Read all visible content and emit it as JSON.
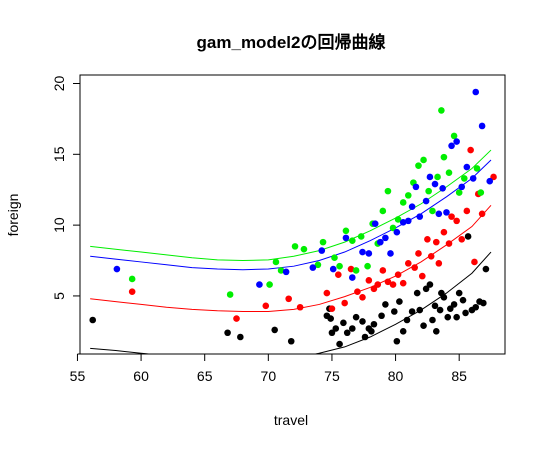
{
  "chart_data": {
    "type": "scatter",
    "title": "gam_model2の回帰曲線",
    "xlabel": "travel",
    "ylabel": "foreign",
    "xlim": [
      55.2,
      88.6
    ],
    "ylim": [
      0.9,
      20.6
    ],
    "xticks": [
      55,
      60,
      65,
      70,
      75,
      80,
      85
    ],
    "yticks": [
      5,
      10,
      15,
      20
    ],
    "grid": false,
    "legend": "none",
    "colors": {
      "black": "#000000",
      "red": "#ff0000",
      "green": "#00ee00",
      "blue": "#0000ff"
    },
    "series": [
      {
        "color": "black",
        "points": [
          [
            56.2,
            3.3
          ],
          [
            66.8,
            2.4
          ],
          [
            67.8,
            2.1
          ],
          [
            70.5,
            2.6
          ],
          [
            71.8,
            1.8
          ],
          [
            74.6,
            3.6
          ],
          [
            74.8,
            4.1
          ],
          [
            74.9,
            3.4
          ],
          [
            75.0,
            2.4
          ],
          [
            75.3,
            2.7
          ],
          [
            75.6,
            1.6
          ],
          [
            75.9,
            3.1
          ],
          [
            76.2,
            2.4
          ],
          [
            76.6,
            2.7
          ],
          [
            76.9,
            3.5
          ],
          [
            77.4,
            3.2
          ],
          [
            77.6,
            2.1
          ],
          [
            77.9,
            2.7
          ],
          [
            78.1,
            2.5
          ],
          [
            78.3,
            3.0
          ],
          [
            78.9,
            3.6
          ],
          [
            79.2,
            4.4
          ],
          [
            79.9,
            3.9
          ],
          [
            80.1,
            1.8
          ],
          [
            80.3,
            4.6
          ],
          [
            80.6,
            2.5
          ],
          [
            80.9,
            3.3
          ],
          [
            81.3,
            3.9
          ],
          [
            81.7,
            5.2
          ],
          [
            81.9,
            4.0
          ],
          [
            82.2,
            2.9
          ],
          [
            82.4,
            5.5
          ],
          [
            82.7,
            5.8
          ],
          [
            82.9,
            3.3
          ],
          [
            83.1,
            4.3
          ],
          [
            83.2,
            2.5
          ],
          [
            83.5,
            4.0
          ],
          [
            83.6,
            5.2
          ],
          [
            83.8,
            4.9
          ],
          [
            84.1,
            3.5
          ],
          [
            84.3,
            4.1
          ],
          [
            84.6,
            4.4
          ],
          [
            84.8,
            3.5
          ],
          [
            85.0,
            5.2
          ],
          [
            85.3,
            4.7
          ],
          [
            85.5,
            3.8
          ],
          [
            85.7,
            9.2
          ],
          [
            86.0,
            4.0
          ],
          [
            86.3,
            4.2
          ],
          [
            86.6,
            4.6
          ],
          [
            86.9,
            4.5
          ],
          [
            87.1,
            6.9
          ]
        ]
      },
      {
        "color": "red",
        "points": [
          [
            59.3,
            5.3
          ],
          [
            67.5,
            3.4
          ],
          [
            69.8,
            4.3
          ],
          [
            71.6,
            4.8
          ],
          [
            72.5,
            4.2
          ],
          [
            74.6,
            5.2
          ],
          [
            75.0,
            4.1
          ],
          [
            75.5,
            6.5
          ],
          [
            76.0,
            4.5
          ],
          [
            76.5,
            6.9
          ],
          [
            77.0,
            5.3
          ],
          [
            77.4,
            4.9
          ],
          [
            77.9,
            6.1
          ],
          [
            78.3,
            5.5
          ],
          [
            78.6,
            5.8
          ],
          [
            79.0,
            6.8
          ],
          [
            79.4,
            6.0
          ],
          [
            79.8,
            5.8
          ],
          [
            80.2,
            6.5
          ],
          [
            80.6,
            5.9
          ],
          [
            81.0,
            7.3
          ],
          [
            81.5,
            7.0
          ],
          [
            81.8,
            8.0
          ],
          [
            82.1,
            6.4
          ],
          [
            82.5,
            9.0
          ],
          [
            82.8,
            7.8
          ],
          [
            83.2,
            8.8
          ],
          [
            83.4,
            7.3
          ],
          [
            83.8,
            9.5
          ],
          [
            84.2,
            8.7
          ],
          [
            84.4,
            10.6
          ],
          [
            84.8,
            10.3
          ],
          [
            85.2,
            9.0
          ],
          [
            85.6,
            11.0
          ],
          [
            85.9,
            15.3
          ],
          [
            86.2,
            7.4
          ],
          [
            86.5,
            12.2
          ],
          [
            86.8,
            10.8
          ],
          [
            87.7,
            13.4
          ]
        ]
      },
      {
        "color": "green",
        "points": [
          [
            59.3,
            6.2
          ],
          [
            67.0,
            5.1
          ],
          [
            70.1,
            5.8
          ],
          [
            70.6,
            7.4
          ],
          [
            71.0,
            6.8
          ],
          [
            72.1,
            8.5
          ],
          [
            72.8,
            8.3
          ],
          [
            73.9,
            7.2
          ],
          [
            74.3,
            8.8
          ],
          [
            75.2,
            7.7
          ],
          [
            75.6,
            7.1
          ],
          [
            76.1,
            9.6
          ],
          [
            76.6,
            8.9
          ],
          [
            76.9,
            6.8
          ],
          [
            77.3,
            9.2
          ],
          [
            77.8,
            7.1
          ],
          [
            78.2,
            10.1
          ],
          [
            78.6,
            8.7
          ],
          [
            79.0,
            11.0
          ],
          [
            79.4,
            12.4
          ],
          [
            79.8,
            9.8
          ],
          [
            80.2,
            10.4
          ],
          [
            80.6,
            11.6
          ],
          [
            81.0,
            12.1
          ],
          [
            81.4,
            13.0
          ],
          [
            81.8,
            14.2
          ],
          [
            82.2,
            14.6
          ],
          [
            82.6,
            12.4
          ],
          [
            82.9,
            11.0
          ],
          [
            83.3,
            13.4
          ],
          [
            83.6,
            18.1
          ],
          [
            83.8,
            14.8
          ],
          [
            84.2,
            13.7
          ],
          [
            84.6,
            16.3
          ],
          [
            85.0,
            12.3
          ],
          [
            85.4,
            13.3
          ],
          [
            86.4,
            14.0
          ],
          [
            86.7,
            12.3
          ]
        ]
      },
      {
        "color": "blue",
        "points": [
          [
            58.1,
            6.9
          ],
          [
            69.3,
            5.8
          ],
          [
            71.4,
            6.7
          ],
          [
            73.5,
            7.0
          ],
          [
            74.2,
            8.2
          ],
          [
            75.1,
            6.9
          ],
          [
            76.1,
            9.1
          ],
          [
            76.6,
            6.3
          ],
          [
            77.4,
            8.1
          ],
          [
            77.9,
            8.0
          ],
          [
            78.4,
            10.1
          ],
          [
            78.8,
            8.8
          ],
          [
            79.2,
            9.1
          ],
          [
            79.6,
            8.0
          ],
          [
            80.1,
            9.5
          ],
          [
            80.6,
            10.2
          ],
          [
            81.0,
            10.3
          ],
          [
            81.3,
            11.3
          ],
          [
            81.6,
            12.7
          ],
          [
            81.9,
            10.6
          ],
          [
            82.4,
            11.7
          ],
          [
            82.7,
            13.4
          ],
          [
            83.1,
            12.9
          ],
          [
            83.4,
            10.8
          ],
          [
            83.7,
            12.6
          ],
          [
            84.0,
            10.9
          ],
          [
            84.4,
            15.6
          ],
          [
            84.8,
            15.9
          ],
          [
            85.2,
            12.7
          ],
          [
            85.6,
            14.1
          ],
          [
            86.1,
            13.3
          ],
          [
            86.3,
            19.4
          ],
          [
            86.8,
            17.0
          ],
          [
            87.4,
            13.1
          ]
        ]
      }
    ],
    "curves": [
      {
        "color": "black",
        "x": [
          56,
          58,
          60,
          62,
          64,
          66,
          68,
          70,
          72,
          74,
          76,
          78,
          80,
          82,
          84,
          86,
          87.5
        ],
        "y": [
          1.3,
          1.15,
          0.95,
          0.78,
          0.62,
          0.5,
          0.42,
          0.42,
          0.6,
          0.95,
          1.4,
          2.1,
          3.0,
          4.0,
          5.2,
          6.6,
          8.1
        ]
      },
      {
        "color": "red",
        "x": [
          56,
          58,
          60,
          62,
          64,
          66,
          68,
          70,
          72,
          74,
          76,
          78,
          80,
          82,
          84,
          86,
          87.5
        ],
        "y": [
          4.8,
          4.6,
          4.4,
          4.2,
          4.05,
          3.95,
          3.9,
          3.9,
          4.05,
          4.4,
          4.95,
          5.6,
          6.4,
          7.4,
          8.6,
          9.9,
          11.4
        ]
      },
      {
        "color": "green",
        "x": [
          56,
          58,
          60,
          62,
          64,
          66,
          68,
          70,
          72,
          74,
          76,
          78,
          80,
          82,
          84,
          86,
          87.5
        ],
        "y": [
          8.5,
          8.3,
          8.1,
          7.9,
          7.7,
          7.55,
          7.5,
          7.55,
          7.8,
          8.2,
          8.8,
          9.6,
          10.5,
          11.5,
          12.7,
          14.0,
          15.3
        ]
      },
      {
        "color": "blue",
        "x": [
          56,
          58,
          60,
          62,
          64,
          66,
          68,
          70,
          72,
          74,
          76,
          78,
          80,
          82,
          84,
          86,
          87.5
        ],
        "y": [
          7.8,
          7.6,
          7.4,
          7.2,
          7.0,
          6.9,
          6.85,
          6.9,
          7.1,
          7.5,
          8.1,
          8.9,
          9.8,
          10.8,
          12.0,
          13.3,
          14.6
        ]
      }
    ]
  }
}
